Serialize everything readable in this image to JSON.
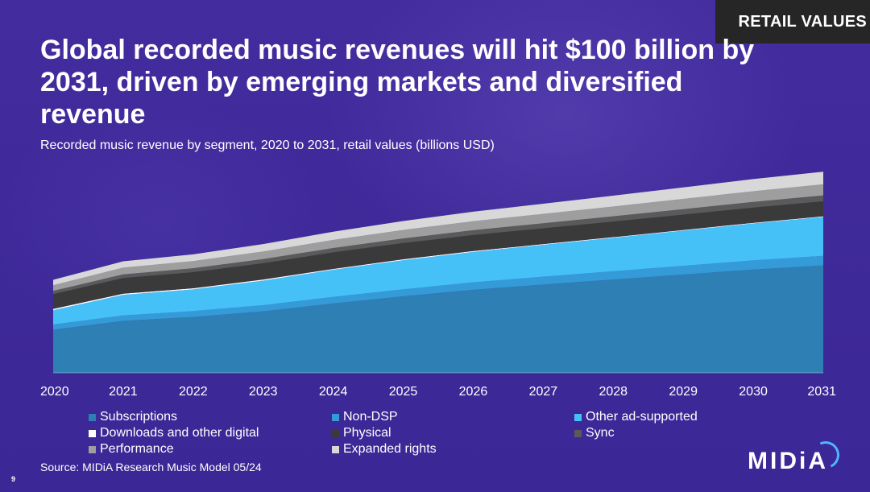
{
  "header": {
    "tag": "RETAIL VALUES",
    "title": "Global recorded music revenues will hit $100 billion by 2031, driven by emerging markets and diversified revenue",
    "subtitle": "Recorded music revenue by segment, 2020 to 2031, retail values (billions USD)"
  },
  "footer": {
    "source": "Source: MIDiA Research Music Model 05/24",
    "page_number": "9",
    "logo": "MIDiA"
  },
  "colors": {
    "background": "#3f2a99",
    "tag_background": "#262626",
    "logo_accent": "#4db6ff"
  },
  "chart_data": {
    "type": "area",
    "stacked": true,
    "title": "Recorded music revenue by segment, 2020 to 2031, retail values (billions USD)",
    "xlabel": "",
    "ylabel": "",
    "ylim": [
      0,
      100
    ],
    "categories": [
      "2020",
      "2021",
      "2022",
      "2023",
      "2024",
      "2025",
      "2026",
      "2027",
      "2028",
      "2029",
      "2030",
      "2031"
    ],
    "series": [
      {
        "name": "Subscriptions",
        "color": "#2e7fb3",
        "values": [
          19.8,
          23.9,
          25.7,
          28.3,
          31.9,
          35.2,
          38.2,
          40.6,
          42.9,
          45.2,
          47.5,
          49.4
        ]
      },
      {
        "name": "Non-DSP",
        "color": "#349bd8",
        "values": [
          2.4,
          2.5,
          2.7,
          2.8,
          3.0,
          3.2,
          3.4,
          3.6,
          3.8,
          4.0,
          4.2,
          4.4
        ]
      },
      {
        "name": "Other ad-supported",
        "color": "#46c1f7",
        "values": [
          6.6,
          9.5,
          10.0,
          11.3,
          12.5,
          13.4,
          14.0,
          14.7,
          15.4,
          16.2,
          17.0,
          17.9
        ]
      },
      {
        "name": "Downloads and other digital",
        "color": "#ffffff",
        "values": [
          0.6,
          0.5,
          0.5,
          0.5,
          0.4,
          0.4,
          0.4,
          0.3,
          0.3,
          0.3,
          0.3,
          0.3
        ]
      },
      {
        "name": "Physical",
        "color": "#3a3a3a",
        "values": [
          6.8,
          7.2,
          7.4,
          7.5,
          7.6,
          7.5,
          7.4,
          7.3,
          7.2,
          7.1,
          7.0,
          6.9
        ]
      },
      {
        "name": "Sync",
        "color": "#5a5a5a",
        "values": [
          1.5,
          1.7,
          1.8,
          1.9,
          2.0,
          2.1,
          2.2,
          2.3,
          2.4,
          2.5,
          2.6,
          2.7
        ]
      },
      {
        "name": "Performance",
        "color": "#9e9e9e",
        "values": [
          2.6,
          3.1,
          3.3,
          3.5,
          3.7,
          3.9,
          4.1,
          4.3,
          4.5,
          4.7,
          4.9,
          5.1
        ]
      },
      {
        "name": "Expanded rights",
        "color": "#d8d8d8",
        "values": [
          2.5,
          2.9,
          3.1,
          3.4,
          3.8,
          4.1,
          4.4,
          4.7,
          5.0,
          5.3,
          5.6,
          5.8
        ]
      }
    ]
  }
}
